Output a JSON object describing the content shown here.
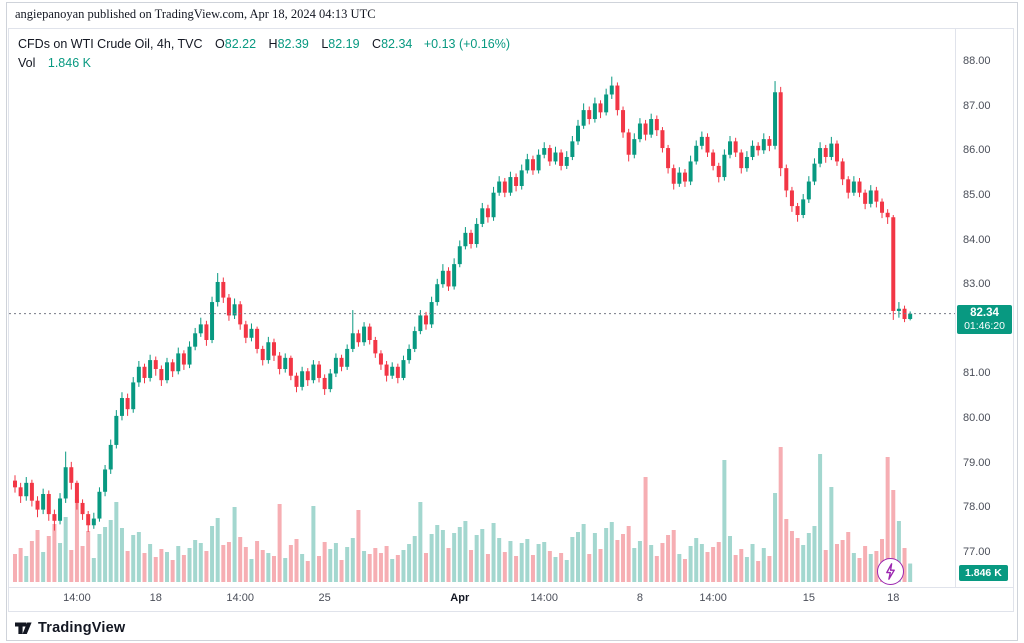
{
  "header": {
    "publish_line": "angiepanoyan published on TradingView.com, Apr 18, 2024 04:13 UTC"
  },
  "legend": {
    "symbol_title": "CFDs on WTI Crude Oil, 4h, TVC",
    "ohlc": [
      {
        "label": "O",
        "value": "82.22"
      },
      {
        "label": "H",
        "value": "82.39"
      },
      {
        "label": "L",
        "value": "82.19"
      },
      {
        "label": "C",
        "value": "82.34"
      }
    ],
    "change": "+0.13 (+0.16%)",
    "vol_label": "Vol",
    "vol_value": "1.846 K"
  },
  "badges": {
    "last_price": "82.34",
    "countdown": "01:46:20",
    "volume": "1.846 K"
  },
  "footer": {
    "brand": "TradingView"
  },
  "colors": {
    "up": "#089981",
    "down": "#f23645",
    "vol_up": "#a3d7cf",
    "vol_down": "#f6aeb3",
    "badge": "#089981",
    "flash": "#9c27b0",
    "last_price_line": "#787b86"
  },
  "chart_data": {
    "type": "candlestick",
    "title": "CFDs on WTI Crude Oil, 4h, TVC",
    "symbol": "CFDs on WTI Crude Oil",
    "interval": "4h",
    "exchange": "TVC",
    "y_axis_side": "right",
    "grid": false,
    "ylim": [
      77,
      88
    ],
    "y_ticks": [
      "88.00",
      "87.00",
      "86.00",
      "85.00",
      "84.00",
      "83.00",
      "82.00",
      "81.00",
      "80.00",
      "79.00",
      "78.00",
      "77.00"
    ],
    "x_ticks": [
      {
        "index": 11,
        "label": "14:00"
      },
      {
        "index": 25,
        "label": "18"
      },
      {
        "index": 40,
        "label": "14:00"
      },
      {
        "index": 55,
        "label": "25"
      },
      {
        "index": 79,
        "label": "Apr",
        "major": true
      },
      {
        "index": 94,
        "label": "14:00"
      },
      {
        "index": 111,
        "label": "8"
      },
      {
        "index": 124,
        "label": "14:00"
      },
      {
        "index": 141,
        "label": "15"
      },
      {
        "index": 156,
        "label": "18"
      }
    ],
    "last": {
      "o": 82.22,
      "h": 82.39,
      "l": 82.19,
      "c": 82.34,
      "change": 0.13,
      "change_pct": 0.16,
      "volume_k": 1.846,
      "countdown": "01:46:20"
    },
    "volume_unit": "K",
    "candles_format": [
      "open",
      "high",
      "low",
      "close",
      "volume_k"
    ],
    "candles": [
      [
        78.6,
        78.72,
        78.33,
        78.45,
        2.8
      ],
      [
        78.45,
        78.55,
        78.1,
        78.25,
        3.4
      ],
      [
        78.25,
        78.68,
        78.15,
        78.55,
        2.6
      ],
      [
        78.55,
        78.62,
        78.02,
        78.15,
        4.1
      ],
      [
        78.15,
        78.25,
        77.78,
        77.95,
        5.2
      ],
      [
        77.95,
        78.42,
        77.85,
        78.3,
        3.0
      ],
      [
        78.3,
        78.38,
        77.7,
        77.85,
        4.6
      ],
      [
        77.85,
        77.95,
        77.48,
        77.7,
        5.8
      ],
      [
        77.7,
        78.32,
        77.62,
        78.2,
        3.9
      ],
      [
        78.2,
        79.25,
        78.1,
        78.9,
        6.5
      ],
      [
        78.9,
        79.02,
        78.4,
        78.55,
        3.2
      ],
      [
        78.55,
        78.6,
        77.95,
        78.1,
        8.3
      ],
      [
        78.1,
        78.18,
        77.72,
        77.85,
        3.6
      ],
      [
        77.85,
        77.92,
        77.45,
        77.6,
        5.1
      ],
      [
        77.6,
        77.88,
        77.52,
        77.75,
        2.4
      ],
      [
        77.75,
        78.45,
        77.68,
        78.35,
        4.8
      ],
      [
        78.35,
        78.95,
        78.25,
        78.85,
        5.5
      ],
      [
        78.85,
        79.52,
        78.75,
        79.4,
        6.2
      ],
      [
        79.4,
        80.18,
        79.32,
        80.05,
        8.0
      ],
      [
        80.05,
        80.58,
        79.95,
        80.45,
        5.4
      ],
      [
        80.45,
        80.55,
        80.05,
        80.2,
        3.1
      ],
      [
        80.2,
        80.92,
        80.12,
        80.8,
        4.7
      ],
      [
        80.8,
        81.28,
        80.7,
        81.15,
        5.0
      ],
      [
        81.15,
        81.22,
        80.78,
        80.9,
        2.9
      ],
      [
        80.9,
        81.42,
        80.82,
        81.3,
        3.8
      ],
      [
        81.3,
        81.38,
        80.95,
        81.1,
        2.5
      ],
      [
        81.1,
        81.18,
        80.72,
        80.85,
        3.3
      ],
      [
        80.85,
        81.35,
        80.78,
        81.25,
        3.0
      ],
      [
        81.25,
        81.32,
        80.92,
        81.05,
        2.2
      ],
      [
        81.05,
        81.58,
        80.98,
        81.45,
        3.6
      ],
      [
        81.45,
        81.52,
        81.08,
        81.2,
        2.7
      ],
      [
        81.2,
        81.72,
        81.12,
        81.6,
        3.4
      ],
      [
        81.6,
        82.02,
        81.52,
        81.9,
        4.2
      ],
      [
        81.9,
        82.25,
        81.82,
        82.1,
        3.9
      ],
      [
        82.1,
        82.18,
        81.62,
        81.75,
        3.1
      ],
      [
        81.75,
        82.72,
        81.68,
        82.6,
        5.6
      ],
      [
        82.6,
        83.25,
        82.5,
        83.05,
        6.4
      ],
      [
        83.05,
        83.15,
        82.58,
        82.7,
        3.7
      ],
      [
        82.7,
        82.78,
        82.18,
        82.3,
        4.0
      ],
      [
        82.3,
        82.68,
        82.22,
        82.55,
        7.5
      ],
      [
        82.55,
        82.62,
        81.98,
        82.1,
        4.5
      ],
      [
        82.1,
        82.18,
        81.68,
        81.8,
        3.5
      ],
      [
        81.8,
        82.12,
        81.72,
        82.0,
        2.3
      ],
      [
        82.0,
        82.05,
        81.45,
        81.55,
        4.1
      ],
      [
        81.55,
        81.62,
        81.18,
        81.3,
        3.2
      ],
      [
        81.3,
        81.82,
        81.22,
        81.7,
        2.9
      ],
      [
        81.7,
        81.78,
        81.28,
        81.4,
        2.6
      ],
      [
        81.4,
        81.48,
        80.98,
        81.1,
        7.8
      ],
      [
        81.1,
        81.45,
        81.02,
        81.35,
        2.4
      ],
      [
        81.35,
        81.4,
        80.85,
        80.95,
        3.7
      ],
      [
        80.95,
        81.02,
        80.58,
        80.7,
        4.3
      ],
      [
        80.7,
        81.15,
        80.62,
        81.05,
        2.8
      ],
      [
        81.05,
        81.12,
        80.72,
        80.85,
        2.1
      ],
      [
        80.85,
        81.3,
        80.78,
        81.2,
        7.6
      ],
      [
        81.2,
        81.28,
        80.8,
        80.9,
        2.6
      ],
      [
        80.9,
        80.98,
        80.52,
        80.65,
        4.0
      ],
      [
        80.65,
        81.1,
        80.58,
        81.0,
        3.3
      ],
      [
        81.0,
        81.45,
        80.92,
        81.35,
        3.9
      ],
      [
        81.35,
        81.42,
        81.05,
        81.15,
        2.2
      ],
      [
        81.15,
        81.65,
        81.08,
        81.55,
        3.5
      ],
      [
        81.55,
        82.42,
        81.48,
        81.9,
        4.4
      ],
      [
        81.9,
        81.98,
        81.6,
        81.7,
        7.2
      ],
      [
        81.7,
        82.15,
        81.62,
        82.05,
        3.1
      ],
      [
        82.05,
        82.12,
        81.65,
        81.75,
        2.8
      ],
      [
        81.75,
        81.82,
        81.35,
        81.45,
        3.4
      ],
      [
        81.45,
        81.52,
        81.08,
        81.2,
        2.9
      ],
      [
        81.2,
        81.28,
        80.82,
        80.95,
        3.6
      ],
      [
        80.95,
        81.25,
        80.88,
        81.15,
        2.3
      ],
      [
        81.15,
        81.22,
        80.78,
        80.9,
        2.7
      ],
      [
        80.9,
        81.4,
        80.85,
        81.3,
        3.2
      ],
      [
        81.3,
        81.65,
        81.22,
        81.55,
        3.8
      ],
      [
        81.55,
        82.05,
        81.48,
        81.95,
        4.6
      ],
      [
        81.95,
        82.42,
        81.88,
        82.3,
        8.0
      ],
      [
        82.3,
        82.38,
        81.98,
        82.1,
        2.9
      ],
      [
        82.1,
        82.72,
        82.02,
        82.6,
        4.8
      ],
      [
        82.6,
        83.12,
        82.52,
        83.0,
        5.7
      ],
      [
        83.0,
        83.45,
        82.92,
        83.3,
        5.2
      ],
      [
        83.3,
        83.38,
        82.85,
        82.95,
        3.4
      ],
      [
        82.95,
        83.58,
        82.88,
        83.45,
        4.9
      ],
      [
        83.45,
        83.98,
        83.38,
        83.85,
        5.5
      ],
      [
        83.85,
        84.28,
        83.78,
        84.15,
        6.1
      ],
      [
        84.15,
        84.22,
        83.8,
        83.9,
        3.2
      ],
      [
        83.9,
        84.48,
        83.82,
        84.35,
        4.7
      ],
      [
        84.35,
        84.82,
        84.28,
        84.7,
        5.3
      ],
      [
        84.7,
        84.78,
        84.38,
        84.5,
        2.8
      ],
      [
        84.5,
        85.18,
        84.42,
        85.05,
        5.9
      ],
      [
        85.05,
        85.42,
        84.98,
        85.3,
        4.4
      ],
      [
        85.3,
        85.38,
        84.95,
        85.05,
        3.0
      ],
      [
        85.05,
        85.52,
        84.98,
        85.4,
        4.1
      ],
      [
        85.4,
        85.48,
        85.08,
        85.2,
        2.6
      ],
      [
        85.2,
        85.68,
        85.12,
        85.55,
        3.9
      ],
      [
        85.55,
        85.92,
        85.48,
        85.8,
        4.3
      ],
      [
        85.8,
        85.88,
        85.45,
        85.55,
        2.7
      ],
      [
        85.55,
        86.02,
        85.48,
        85.9,
        3.8
      ],
      [
        85.9,
        86.18,
        85.82,
        86.05,
        4.0
      ],
      [
        86.05,
        86.12,
        85.65,
        85.75,
        3.1
      ],
      [
        85.75,
        86.08,
        85.68,
        85.95,
        2.5
      ],
      [
        85.95,
        86.02,
        85.55,
        85.65,
        2.9
      ],
      [
        85.65,
        85.98,
        85.58,
        85.85,
        2.2
      ],
      [
        85.85,
        86.32,
        85.78,
        86.2,
        4.5
      ],
      [
        86.2,
        86.68,
        86.12,
        86.55,
        5.0
      ],
      [
        86.55,
        87.05,
        86.48,
        86.9,
        5.8
      ],
      [
        86.9,
        86.98,
        86.58,
        86.7,
        2.8
      ],
      [
        86.7,
        87.18,
        86.62,
        87.05,
        4.9
      ],
      [
        87.05,
        87.12,
        86.72,
        86.85,
        3.3
      ],
      [
        86.85,
        87.38,
        86.78,
        87.25,
        5.4
      ],
      [
        87.25,
        87.65,
        87.15,
        87.45,
        6.0
      ],
      [
        87.45,
        87.52,
        86.78,
        86.9,
        4.2
      ],
      [
        86.9,
        86.98,
        86.28,
        86.4,
        4.8
      ],
      [
        86.4,
        86.48,
        85.75,
        85.9,
        5.6
      ],
      [
        85.9,
        86.38,
        85.82,
        86.25,
        3.4
      ],
      [
        86.25,
        86.72,
        86.18,
        86.6,
        4.1
      ],
      [
        86.6,
        86.68,
        86.22,
        86.35,
        10.5
      ],
      [
        86.35,
        86.82,
        86.28,
        86.7,
        3.7
      ],
      [
        86.7,
        86.78,
        86.32,
        86.45,
        2.6
      ],
      [
        86.45,
        86.52,
        85.95,
        86.05,
        3.9
      ],
      [
        86.05,
        86.12,
        85.48,
        85.6,
        4.7
      ],
      [
        85.6,
        85.68,
        85.12,
        85.25,
        5.2
      ],
      [
        85.25,
        85.62,
        85.18,
        85.5,
        2.8
      ],
      [
        85.5,
        85.58,
        85.18,
        85.3,
        2.3
      ],
      [
        85.3,
        85.88,
        85.22,
        85.75,
        3.6
      ],
      [
        85.75,
        86.22,
        85.68,
        86.1,
        4.4
      ],
      [
        86.1,
        86.42,
        86.02,
        86.3,
        3.8
      ],
      [
        86.3,
        86.38,
        85.85,
        85.95,
        3.0
      ],
      [
        85.95,
        86.02,
        85.55,
        85.65,
        3.5
      ],
      [
        85.65,
        85.72,
        85.28,
        85.4,
        4.0
      ],
      [
        85.4,
        86.02,
        85.32,
        85.9,
        12.2
      ],
      [
        85.9,
        86.32,
        85.82,
        86.2,
        4.6
      ],
      [
        86.2,
        86.28,
        85.85,
        85.95,
        2.7
      ],
      [
        85.95,
        86.02,
        85.48,
        85.6,
        3.3
      ],
      [
        85.6,
        85.98,
        85.52,
        85.85,
        2.5
      ],
      [
        85.85,
        86.22,
        85.78,
        86.1,
        3.8
      ],
      [
        86.1,
        86.18,
        85.88,
        86.0,
        2.1
      ],
      [
        86.0,
        86.38,
        85.92,
        86.25,
        3.4
      ],
      [
        86.25,
        86.32,
        85.98,
        86.1,
        2.6
      ],
      [
        86.1,
        87.55,
        86.02,
        87.3,
        8.9
      ],
      [
        87.3,
        87.42,
        85.42,
        85.6,
        13.5
      ],
      [
        85.6,
        85.68,
        84.95,
        85.1,
        6.3
      ],
      [
        85.1,
        85.18,
        84.62,
        84.75,
        5.1
      ],
      [
        84.75,
        84.82,
        84.4,
        84.55,
        4.4
      ],
      [
        84.55,
        85.02,
        84.48,
        84.9,
        3.7
      ],
      [
        84.9,
        85.42,
        84.82,
        85.3,
        4.9
      ],
      [
        85.3,
        85.82,
        85.22,
        85.7,
        5.6
      ],
      [
        85.7,
        86.18,
        85.62,
        86.05,
        12.8
      ],
      [
        86.05,
        86.12,
        85.72,
        85.85,
        3.2
      ],
      [
        85.85,
        86.3,
        85.78,
        86.15,
        9.5
      ],
      [
        86.15,
        86.22,
        85.65,
        85.75,
        3.8
      ],
      [
        85.75,
        85.82,
        85.22,
        85.35,
        4.2
      ],
      [
        85.35,
        85.42,
        84.92,
        85.05,
        5.0
      ],
      [
        85.05,
        85.42,
        84.98,
        85.3,
        2.9
      ],
      [
        85.3,
        85.38,
        84.95,
        85.05,
        2.4
      ],
      [
        85.05,
        85.12,
        84.68,
        84.8,
        3.6
      ],
      [
        84.8,
        85.22,
        84.72,
        85.1,
        2.8
      ],
      [
        85.1,
        85.18,
        84.72,
        84.85,
        3.1
      ],
      [
        84.85,
        84.92,
        84.48,
        84.6,
        4.3
      ],
      [
        84.6,
        84.68,
        84.35,
        84.5,
        12.5
      ],
      [
        84.5,
        84.55,
        82.2,
        82.4,
        9.2
      ],
      [
        82.4,
        82.6,
        82.25,
        82.45,
        6.1
      ],
      [
        82.45,
        82.52,
        82.15,
        82.22,
        3.4
      ],
      [
        82.22,
        82.39,
        82.19,
        82.34,
        1.846
      ]
    ]
  }
}
